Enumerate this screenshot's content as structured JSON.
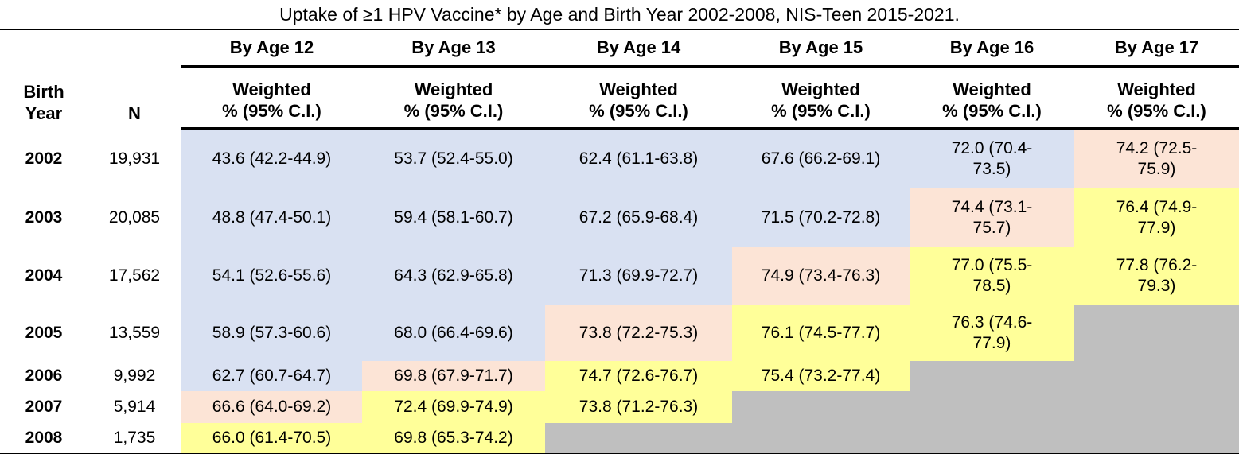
{
  "title": "Uptake of ≥1 HPV Vaccine* by Age and Birth Year 2002-2008, NIS-Teen 2015-2021.",
  "colors": {
    "blue": "#D9E1F2",
    "peach": "#FCE4D6",
    "yellow": "#FFFF99",
    "gray": "#BFBFBF",
    "rule": "#000000"
  },
  "table": {
    "birth_year_header": "Birth\nYear",
    "n_header": "N",
    "age_headers": [
      "By Age 12",
      "By Age 13",
      "By Age 14",
      "By Age 15",
      "By Age 16",
      "By Age 17"
    ],
    "subheader": "Weighted\n% (95% C.I.)",
    "rows": [
      {
        "year": "2002",
        "n": "19,931",
        "cells": [
          {
            "t": "43.6 (42.2-44.9)",
            "c": "blue"
          },
          {
            "t": "53.7 (52.4-55.0)",
            "c": "blue"
          },
          {
            "t": "62.4 (61.1-63.8)",
            "c": "blue"
          },
          {
            "t": "67.6 (66.2-69.1)",
            "c": "blue"
          },
          {
            "t": "72.0 (70.4-\n73.5)",
            "c": "blue"
          },
          {
            "t": "74.2 (72.5-\n75.9)",
            "c": "peach"
          }
        ]
      },
      {
        "year": "2003",
        "n": "20,085",
        "cells": [
          {
            "t": "48.8 (47.4-50.1)",
            "c": "blue"
          },
          {
            "t": "59.4 (58.1-60.7)",
            "c": "blue"
          },
          {
            "t": "67.2 (65.9-68.4)",
            "c": "blue"
          },
          {
            "t": "71.5 (70.2-72.8)",
            "c": "blue"
          },
          {
            "t": "74.4 (73.1-\n75.7)",
            "c": "peach"
          },
          {
            "t": "76.4 (74.9-\n77.9)",
            "c": "yellow"
          }
        ]
      },
      {
        "year": "2004",
        "n": "17,562",
        "cells": [
          {
            "t": "54.1 (52.6-55.6)",
            "c": "blue"
          },
          {
            "t": "64.3 (62.9-65.8)",
            "c": "blue"
          },
          {
            "t": "71.3 (69.9-72.7)",
            "c": "blue"
          },
          {
            "t": "74.9 (73.4-76.3)",
            "c": "peach"
          },
          {
            "t": "77.0 (75.5-\n78.5)",
            "c": "yellow"
          },
          {
            "t": "77.8 (76.2-\n79.3)",
            "c": "yellow"
          }
        ]
      },
      {
        "year": "2005",
        "n": "13,559",
        "cells": [
          {
            "t": "58.9 (57.3-60.6)",
            "c": "blue"
          },
          {
            "t": "68.0 (66.4-69.6)",
            "c": "blue"
          },
          {
            "t": "73.8 (72.2-75.3)",
            "c": "peach"
          },
          {
            "t": "76.1 (74.5-77.7)",
            "c": "yellow"
          },
          {
            "t": "76.3 (74.6-\n77.9)",
            "c": "yellow"
          },
          {
            "t": "",
            "c": "gray"
          }
        ]
      },
      {
        "year": "2006",
        "n": "9,992",
        "cells": [
          {
            "t": "62.7 (60.7-64.7)",
            "c": "blue"
          },
          {
            "t": "69.8 (67.9-71.7)",
            "c": "peach"
          },
          {
            "t": "74.7 (72.6-76.7)",
            "c": "yellow"
          },
          {
            "t": "75.4 (73.2-77.4)",
            "c": "yellow"
          },
          {
            "t": "",
            "c": "gray"
          },
          {
            "t": "",
            "c": "gray"
          }
        ]
      },
      {
        "year": "2007",
        "n": "5,914",
        "cells": [
          {
            "t": "66.6 (64.0-69.2)",
            "c": "peach"
          },
          {
            "t": "72.4 (69.9-74.9)",
            "c": "yellow"
          },
          {
            "t": "73.8 (71.2-76.3)",
            "c": "yellow"
          },
          {
            "t": "",
            "c": "gray"
          },
          {
            "t": "",
            "c": "gray"
          },
          {
            "t": "",
            "c": "gray"
          }
        ]
      },
      {
        "year": "2008",
        "n": "1,735",
        "cells": [
          {
            "t": "66.0 (61.4-70.5)",
            "c": "yellow"
          },
          {
            "t": "69.8 (65.3-74.2)",
            "c": "yellow"
          },
          {
            "t": "",
            "c": "gray"
          },
          {
            "t": "",
            "c": "gray"
          },
          {
            "t": "",
            "c": "gray"
          },
          {
            "t": "",
            "c": "gray"
          }
        ]
      }
    ]
  },
  "chart_data": {
    "type": "table",
    "title": "Uptake of ≥1 HPV Vaccine* by Age and Birth Year 2002-2008, NIS-Teen 2015-2021.",
    "categories": [
      "2002",
      "2003",
      "2004",
      "2005",
      "2006",
      "2007",
      "2008"
    ],
    "n": [
      19931,
      20085,
      17562,
      13559,
      9992,
      5914,
      1735
    ],
    "value_format": "Weighted % (95% C.I.)",
    "series": [
      {
        "name": "By Age 12",
        "values": [
          43.6,
          48.8,
          54.1,
          58.9,
          62.7,
          66.6,
          66.0
        ],
        "ci": [
          "42.2-44.9",
          "47.4-50.1",
          "52.6-55.6",
          "57.3-60.6",
          "60.7-64.7",
          "64.0-69.2",
          "61.4-70.5"
        ]
      },
      {
        "name": "By Age 13",
        "values": [
          53.7,
          59.4,
          64.3,
          68.0,
          69.8,
          72.4,
          69.8
        ],
        "ci": [
          "52.4-55.0",
          "58.1-60.7",
          "62.9-65.8",
          "66.4-69.6",
          "67.9-71.7",
          "69.9-74.9",
          "65.3-74.2"
        ]
      },
      {
        "name": "By Age 14",
        "values": [
          62.4,
          67.2,
          71.3,
          73.8,
          74.7,
          73.8,
          null
        ],
        "ci": [
          "61.1-63.8",
          "65.9-68.4",
          "69.9-72.7",
          "72.2-75.3",
          "72.6-76.7",
          "71.2-76.3",
          null
        ]
      },
      {
        "name": "By Age 15",
        "values": [
          67.6,
          71.5,
          74.9,
          76.1,
          75.4,
          null,
          null
        ],
        "ci": [
          "66.2-69.1",
          "70.2-72.8",
          "73.4-76.3",
          "74.5-77.7",
          "73.2-77.4",
          null,
          null
        ]
      },
      {
        "name": "By Age 16",
        "values": [
          72.0,
          74.4,
          77.0,
          76.3,
          null,
          null,
          null
        ],
        "ci": [
          "70.4-73.5",
          "73.1-75.7",
          "75.5-78.5",
          "74.6-77.9",
          null,
          null,
          null
        ]
      },
      {
        "name": "By Age 17",
        "values": [
          74.2,
          76.4,
          77.8,
          null,
          null,
          null,
          null
        ],
        "ci": [
          "72.5-75.9",
          "74.9-77.9",
          "76.2-79.3",
          null,
          null,
          null,
          null
        ]
      }
    ],
    "cell_highlight_colors": {
      "blue": "#D9E1F2",
      "peach": "#FCE4D6",
      "yellow": "#FFFF99",
      "gray_no_data": "#BFBFBF"
    }
  }
}
